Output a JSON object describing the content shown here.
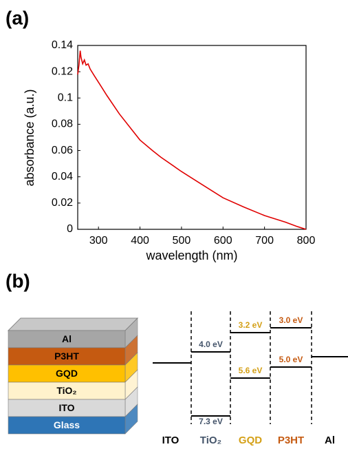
{
  "panels": {
    "a": "(a)",
    "b": "(b)"
  },
  "chart_data": {
    "type": "line",
    "x_label": "wavelength (nm)",
    "y_label": "absorbance (a.u.)",
    "x": [
      250,
      253,
      256,
      258,
      262,
      266,
      270,
      275,
      280,
      290,
      300,
      320,
      350,
      380,
      400,
      430,
      450,
      500,
      550,
      600,
      650,
      700,
      750,
      780,
      800
    ],
    "values": [
      0.118,
      0.125,
      0.136,
      0.131,
      0.126,
      0.129,
      0.125,
      0.126,
      0.122,
      0.117,
      0.112,
      0.102,
      0.088,
      0.076,
      0.068,
      0.06,
      0.055,
      0.044,
      0.034,
      0.024,
      0.017,
      0.0105,
      0.0055,
      0.002,
      0.0
    ],
    "color": "#e00000",
    "xlim": [
      250,
      800
    ],
    "ylim": [
      0,
      0.14
    ],
    "xticks": [
      300,
      400,
      500,
      600,
      700,
      800
    ],
    "yticks": [
      0,
      0.02,
      0.04,
      0.06,
      0.08,
      0.1,
      0.12,
      0.14
    ]
  },
  "device_stack": {
    "layers": [
      {
        "label": "Al",
        "color": "#a6a6a6"
      },
      {
        "label": "P3HT",
        "color": "#c55a11"
      },
      {
        "label": "GQD",
        "color": "#ffc000"
      },
      {
        "label": "TiO₂",
        "color": "#fff2cc"
      },
      {
        "label": "ITO",
        "color": "#d9d9d9"
      },
      {
        "label": "Glass",
        "color": "#2e75b6"
      }
    ]
  },
  "energy_diagram": {
    "columns": [
      {
        "label": "ITO",
        "color": "#000000"
      },
      {
        "label": "TiO₂",
        "color": "#44546a",
        "upper": "4.0 eV",
        "lower": "7.3 eV"
      },
      {
        "label": "GQD",
        "color": "#d4a017",
        "upper": "3.2 eV",
        "lower": "5.6 eV"
      },
      {
        "label": "P3HT",
        "color": "#c55a11",
        "upper": "3.0 eV",
        "lower": "5.0 eV"
      },
      {
        "label": "Al",
        "color": "#000000"
      }
    ]
  }
}
